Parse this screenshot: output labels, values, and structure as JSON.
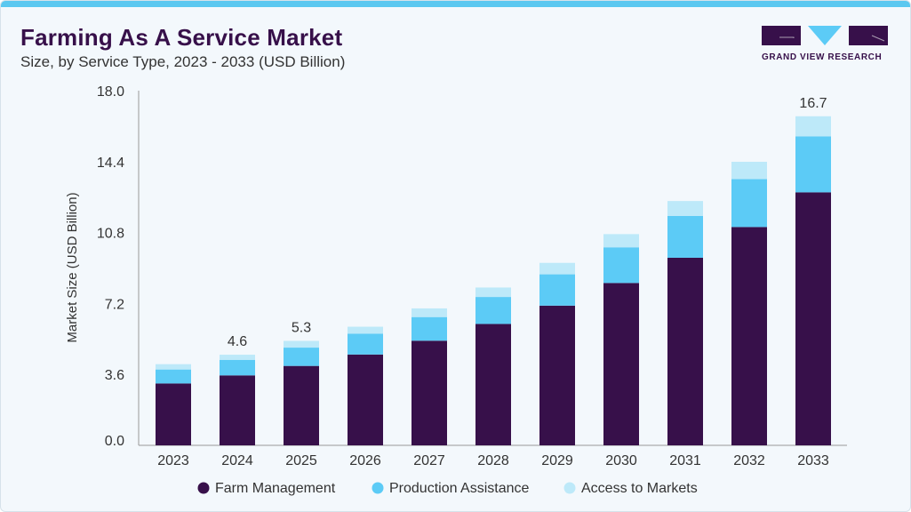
{
  "header": {
    "title": "Farming As A Service Market",
    "subtitle": "Size, by Service Type, 2023 - 2033 (USD Billion)"
  },
  "logo": {
    "text": "GRAND VIEW RESEARCH"
  },
  "colors": {
    "farm": "#37104a",
    "production": "#5ccbf6",
    "access": "#bde9f9",
    "accent": "#5bc8f0"
  },
  "chart_data": {
    "type": "bar",
    "stacked": true,
    "title": "Farming As A Service Market",
    "xlabel": "",
    "ylabel": "Market Size (USD Billion)",
    "ylim": [
      0,
      18
    ],
    "yticks": [
      "0.0",
      "3.6",
      "7.2",
      "10.8",
      "14.4",
      "18.0"
    ],
    "categories": [
      "2023",
      "2024",
      "2025",
      "2026",
      "2027",
      "2028",
      "2029",
      "2030",
      "2031",
      "2032",
      "2033"
    ],
    "series": [
      {
        "name": "Farm Management",
        "values": [
          3.14,
          3.55,
          4.03,
          4.61,
          5.31,
          6.16,
          7.09,
          8.24,
          9.52,
          11.08,
          12.84
        ]
      },
      {
        "name": "Production Assistance",
        "values": [
          0.71,
          0.79,
          0.93,
          1.06,
          1.2,
          1.37,
          1.59,
          1.81,
          2.12,
          2.43,
          2.84
        ]
      },
      {
        "name": "Access to Markets",
        "values": [
          0.27,
          0.26,
          0.34,
          0.35,
          0.44,
          0.48,
          0.58,
          0.67,
          0.76,
          0.88,
          1.02
        ]
      }
    ],
    "data_labels": [
      {
        "category": "2024",
        "text": "4.6"
      },
      {
        "category": "2025",
        "text": "5.3"
      },
      {
        "category": "2033",
        "text": "16.7"
      }
    ],
    "legend": "bottom-center",
    "grid": false
  }
}
